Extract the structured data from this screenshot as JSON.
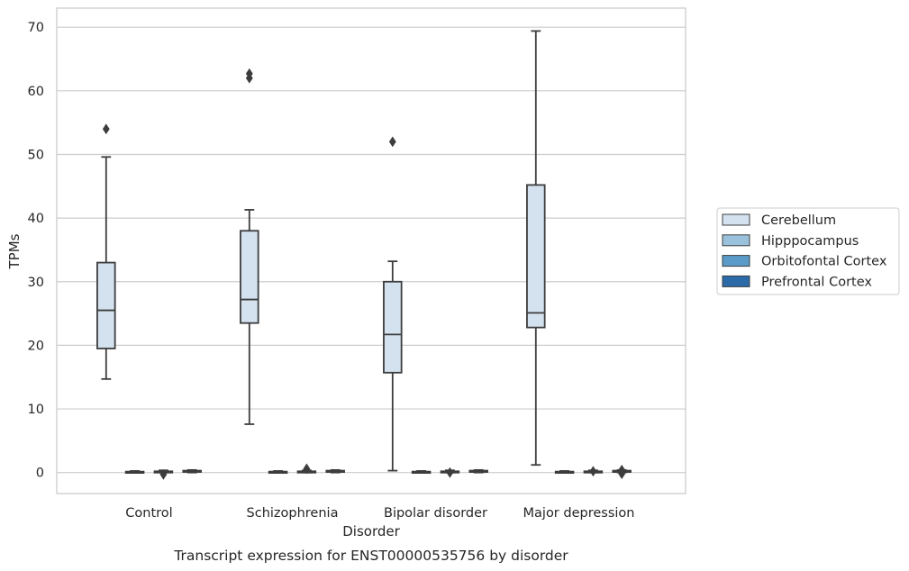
{
  "chart_data": {
    "type": "box",
    "title": "",
    "caption": "Transcript expression for ENST00000535756 by disorder",
    "xlabel": "Disorder",
    "ylabel": "TPMs",
    "ylim": [
      -3.3,
      73
    ],
    "yticks": [
      0,
      10,
      20,
      30,
      40,
      50,
      60,
      70
    ],
    "grid": true,
    "legend_position": "right",
    "categories": [
      "Control",
      "Schizophrenia",
      "Bipolar disorder",
      "Major depression"
    ],
    "series": [
      {
        "name": "Cerebellum",
        "color": "#d4e2f0",
        "boxes": [
          {
            "whisker_low": 14.7,
            "q1": 19.5,
            "median": 25.5,
            "q3": 33.0,
            "whisker_high": 49.6,
            "outliers": [
              54.0
            ]
          },
          {
            "whisker_low": 7.6,
            "q1": 23.5,
            "median": 27.2,
            "q3": 38.0,
            "whisker_high": 41.3,
            "outliers": [
              62.0,
              62.7
            ]
          },
          {
            "whisker_low": 0.3,
            "q1": 15.7,
            "median": 21.7,
            "q3": 30.0,
            "whisker_high": 33.2,
            "outliers": [
              52.0
            ]
          },
          {
            "whisker_low": 1.2,
            "q1": 22.8,
            "median": 25.1,
            "q3": 45.2,
            "whisker_high": 69.4,
            "outliers": []
          }
        ]
      },
      {
        "name": "Hipppocampus",
        "color": "#9ac2dc",
        "boxes": [
          {
            "whisker_low": 0.0,
            "q1": 0.05,
            "median": 0.1,
            "q3": 0.15,
            "whisker_high": 0.25,
            "outliers": []
          },
          {
            "whisker_low": 0.0,
            "q1": 0.05,
            "median": 0.1,
            "q3": 0.15,
            "whisker_high": 0.25,
            "outliers": []
          },
          {
            "whisker_low": 0.0,
            "q1": 0.05,
            "median": 0.1,
            "q3": 0.15,
            "whisker_high": 0.25,
            "outliers": []
          },
          {
            "whisker_low": 0.0,
            "q1": 0.05,
            "median": 0.1,
            "q3": 0.15,
            "whisker_high": 0.25,
            "outliers": []
          }
        ]
      },
      {
        "name": "Orbitofontal Cortex",
        "color": "#5a9bc9",
        "boxes": [
          {
            "whisker_low": 0.0,
            "q1": 0.05,
            "median": 0.1,
            "q3": 0.2,
            "whisker_high": 0.35,
            "outliers": [
              -0.3
            ]
          },
          {
            "whisker_low": 0.0,
            "q1": 0.05,
            "median": 0.1,
            "q3": 0.2,
            "whisker_high": 0.35,
            "outliers": [
              0.6
            ]
          },
          {
            "whisker_low": 0.0,
            "q1": 0.05,
            "median": 0.1,
            "q3": 0.2,
            "whisker_high": 0.35,
            "outliers": [
              0.0
            ]
          },
          {
            "whisker_low": 0.0,
            "q1": 0.05,
            "median": 0.1,
            "q3": 0.2,
            "whisker_high": 0.35,
            "outliers": [
              0.2
            ]
          }
        ]
      },
      {
        "name": "Prefrontal Cortex",
        "color": "#2b6aa9",
        "boxes": [
          {
            "whisker_low": 0.0,
            "q1": 0.1,
            "median": 0.2,
            "q3": 0.3,
            "whisker_high": 0.4,
            "outliers": []
          },
          {
            "whisker_low": 0.0,
            "q1": 0.1,
            "median": 0.2,
            "q3": 0.3,
            "whisker_high": 0.4,
            "outliers": []
          },
          {
            "whisker_low": 0.0,
            "q1": 0.1,
            "median": 0.2,
            "q3": 0.3,
            "whisker_high": 0.4,
            "outliers": []
          },
          {
            "whisker_low": 0.0,
            "q1": 0.1,
            "median": 0.2,
            "q3": 0.3,
            "whisker_high": 0.4,
            "outliers": [
              0.4,
              -0.2
            ]
          }
        ]
      }
    ]
  }
}
